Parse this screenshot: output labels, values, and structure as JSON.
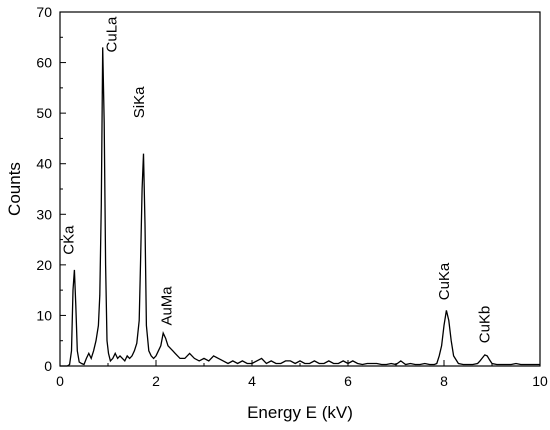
{
  "chart_data": {
    "type": "line",
    "title": "",
    "xlabel": "Energy E (kV)",
    "ylabel": "Counts",
    "xlim": [
      0,
      10
    ],
    "ylim": [
      0,
      70
    ],
    "xticks": [
      0,
      2,
      4,
      6,
      8,
      10
    ],
    "yticks": [
      0,
      10,
      20,
      30,
      40,
      50,
      60,
      70
    ],
    "grid": false,
    "legend": "none",
    "line_color": "#000000",
    "annotations": [
      {
        "text": "CKa",
        "x": 0.28,
        "y": 22
      },
      {
        "text": "CuLa",
        "x": 1.18,
        "y": 62
      },
      {
        "text": "SiKa",
        "x": 1.75,
        "y": 49
      },
      {
        "text": "AuMa",
        "x": 2.32,
        "y": 8
      },
      {
        "text": "CuKa",
        "x": 8.1,
        "y": 13
      },
      {
        "text": "CuKb",
        "x": 8.95,
        "y": 4.5
      }
    ],
    "series": [
      {
        "x": [
          0.0,
          0.05,
          0.1,
          0.15,
          0.2,
          0.24,
          0.27,
          0.3,
          0.33,
          0.36,
          0.4,
          0.45,
          0.5,
          0.55,
          0.6,
          0.65,
          0.7,
          0.75,
          0.8,
          0.83,
          0.86,
          0.89,
          0.92,
          0.95,
          0.98,
          1.01,
          1.05,
          1.1,
          1.15,
          1.2,
          1.25,
          1.3,
          1.35,
          1.4,
          1.45,
          1.5,
          1.55,
          1.6,
          1.65,
          1.68,
          1.71,
          1.74,
          1.77,
          1.8,
          1.85,
          1.9,
          1.95,
          2.0,
          2.05,
          2.1,
          2.15,
          2.2,
          2.25,
          2.3,
          2.35,
          2.4,
          2.5,
          2.6,
          2.7,
          2.8,
          2.9,
          3.0,
          3.1,
          3.2,
          3.3,
          3.4,
          3.5,
          3.6,
          3.7,
          3.8,
          3.9,
          4.0,
          4.1,
          4.2,
          4.3,
          4.4,
          4.5,
          4.6,
          4.7,
          4.8,
          4.9,
          5.0,
          5.1,
          5.2,
          5.3,
          5.4,
          5.5,
          5.6,
          5.7,
          5.8,
          5.9,
          6.0,
          6.1,
          6.2,
          6.3,
          6.4,
          6.5,
          6.6,
          6.7,
          6.8,
          6.9,
          7.0,
          7.1,
          7.2,
          7.3,
          7.4,
          7.5,
          7.6,
          7.7,
          7.8,
          7.85,
          7.9,
          7.95,
          8.0,
          8.05,
          8.1,
          8.15,
          8.2,
          8.3,
          8.4,
          8.5,
          8.6,
          8.7,
          8.75,
          8.8,
          8.85,
          8.9,
          8.95,
          9.0,
          9.1,
          9.2,
          9.3,
          9.4,
          9.5,
          9.6,
          9.7,
          9.8,
          9.9,
          10.0
        ],
        "y": [
          0,
          0,
          0,
          0,
          0.3,
          3,
          15,
          19,
          12,
          3,
          0.8,
          0.5,
          0.3,
          1.5,
          2.5,
          1.5,
          3,
          5,
          8,
          14,
          32,
          63,
          48,
          20,
          5,
          2.5,
          1,
          1.5,
          2.5,
          1.5,
          2,
          1.5,
          1,
          2,
          1.5,
          2,
          3,
          4.5,
          9,
          21,
          35,
          42,
          28,
          8,
          3,
          2,
          1.5,
          2,
          3,
          4,
          6.5,
          5.5,
          4,
          3.5,
          3,
          2.5,
          1.5,
          1.5,
          2.5,
          1.5,
          1,
          1.5,
          1,
          2,
          1.5,
          1,
          0.5,
          1,
          0.5,
          1,
          0.5,
          0.5,
          1,
          1.5,
          0.5,
          1,
          0.5,
          0.5,
          1,
          1,
          0.5,
          1,
          0.5,
          0.5,
          1,
          0.5,
          0.5,
          1,
          0.5,
          0.5,
          1,
          0.5,
          1,
          0.5,
          0.3,
          0.5,
          0.5,
          0.5,
          0.3,
          0.3,
          0.5,
          0.3,
          1,
          0.3,
          0.5,
          0.3,
          0.3,
          0.5,
          0.3,
          0.3,
          0.5,
          2,
          4,
          8,
          11,
          9,
          5,
          2,
          0.5,
          0.3,
          0.3,
          0.3,
          0.5,
          1,
          1.6,
          2.2,
          2,
          1.2,
          0.5,
          0.3,
          0.3,
          0.3,
          0.3,
          0.5,
          0.3,
          0.3,
          0.3,
          0.3,
          0.3
        ]
      }
    ]
  }
}
